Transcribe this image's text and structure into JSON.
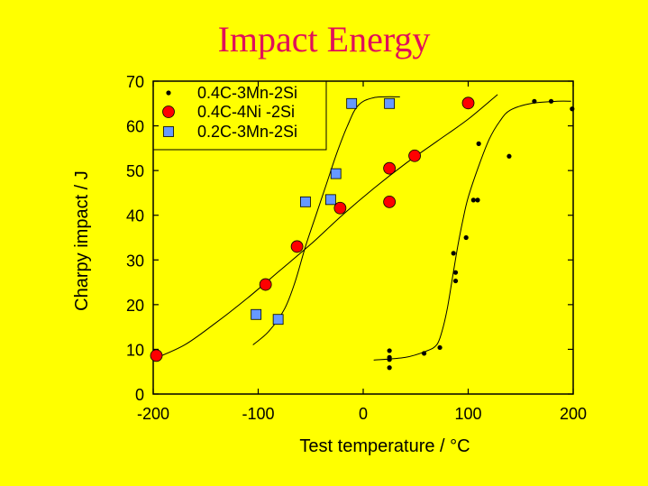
{
  "chart_data": {
    "type": "scatter",
    "title": "Impact Energy",
    "xlabel": "Test temperature / °C",
    "ylabel": "Charpy impact / J",
    "xlim": [
      -200,
      200
    ],
    "ylim": [
      0,
      70
    ],
    "xticks": [
      -200,
      -100,
      0,
      100,
      200
    ],
    "xtick_labels": [
      "-200",
      "-100",
      "0",
      "100",
      "200"
    ],
    "yticks": [
      0,
      10,
      20,
      30,
      40,
      50,
      60,
      70
    ],
    "ytick_labels": [
      "0",
      "10",
      "20",
      "30",
      "40",
      "50",
      "60",
      "70"
    ],
    "legend_position": "top-left",
    "series": [
      {
        "name": "0.4C-3Mn-2Si",
        "marker": "small-dot",
        "color": "#000000",
        "points": [
          [
            25,
            9.7
          ],
          [
            25,
            8.2
          ],
          [
            25,
            7.7
          ],
          [
            25,
            5.9
          ],
          [
            58,
            9.1
          ],
          [
            73,
            10.4
          ],
          [
            86,
            31.5
          ],
          [
            88,
            27.2
          ],
          [
            88,
            25.3
          ],
          [
            98,
            35.0
          ],
          [
            105,
            43.4
          ],
          [
            109,
            43.4
          ],
          [
            110,
            56.0
          ],
          [
            139,
            53.2
          ],
          [
            163,
            65.5
          ],
          [
            179,
            65.5
          ],
          [
            199,
            63.8
          ]
        ],
        "fit": [
          [
            10,
            7.6
          ],
          [
            40,
            8.2
          ],
          [
            60,
            9.6
          ],
          [
            70,
            11.0
          ],
          [
            75,
            14
          ],
          [
            80,
            19
          ],
          [
            85,
            26
          ],
          [
            90,
            33
          ],
          [
            95,
            39
          ],
          [
            100,
            44
          ],
          [
            110,
            51
          ],
          [
            120,
            57
          ],
          [
            130,
            61
          ],
          [
            140,
            63.5
          ],
          [
            160,
            65
          ],
          [
            185,
            65.5
          ],
          [
            198,
            65.5
          ]
        ]
      },
      {
        "name": "0.4C-4Ni -2Si",
        "marker": "red-circle",
        "color": "#ff0000",
        "points": [
          [
            -197,
            8.6
          ],
          [
            -93,
            24.5
          ],
          [
            -63,
            33.0
          ],
          [
            -22,
            41.6
          ],
          [
            25,
            50.5
          ],
          [
            25,
            43.0
          ],
          [
            49,
            53.3
          ],
          [
            100,
            65.1
          ]
        ],
        "fit": [
          [
            -200,
            7.8
          ],
          [
            -170,
            11
          ],
          [
            -140,
            16
          ],
          [
            -110,
            21.5
          ],
          [
            -80,
            27.5
          ],
          [
            -50,
            33.5
          ],
          [
            -20,
            40
          ],
          [
            10,
            46
          ],
          [
            40,
            51.5
          ],
          [
            70,
            56.5
          ],
          [
            100,
            61.5
          ],
          [
            128,
            67
          ]
        ]
      },
      {
        "name": "0.2C-3Mn-2Si",
        "marker": "blue-square",
        "color": "#6699ff",
        "points": [
          [
            -102,
            17.8
          ],
          [
            -81,
            16.7
          ],
          [
            -55,
            43.0
          ],
          [
            -31,
            43.5
          ],
          [
            -26,
            49.3
          ],
          [
            -11,
            65.0
          ],
          [
            25,
            65.0
          ]
        ],
        "fit": [
          [
            -105,
            11
          ],
          [
            -90,
            14
          ],
          [
            -75,
            19
          ],
          [
            -65,
            25
          ],
          [
            -55,
            33
          ],
          [
            -45,
            40
          ],
          [
            -35,
            47
          ],
          [
            -25,
            54
          ],
          [
            -15,
            60
          ],
          [
            -5,
            64.5
          ],
          [
            10,
            66.3
          ],
          [
            35,
            66.5
          ]
        ]
      }
    ]
  }
}
